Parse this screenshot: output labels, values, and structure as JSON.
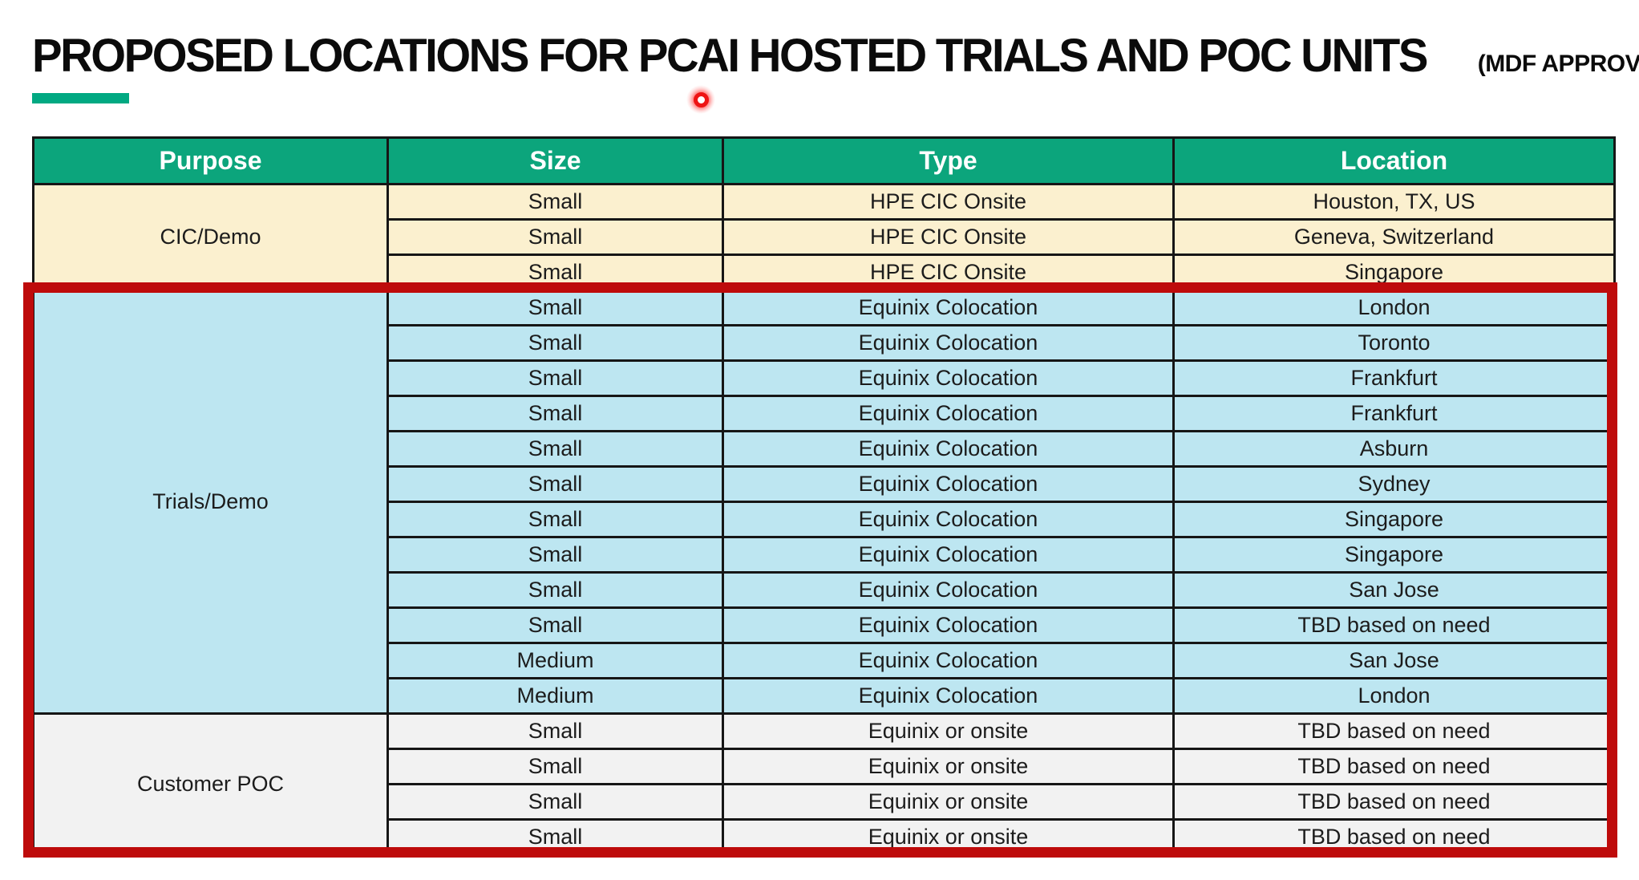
{
  "slide": {
    "title": "PROPOSED LOCATIONS FOR PCAI HOSTED TRIALS AND POC UNITS",
    "title_suffix": "(MDF APPROVED)",
    "accent_color": "#01A982",
    "highlight_border_color": "#BE0B0B",
    "laser_pointer_color": "#EE1414"
  },
  "table": {
    "columns": [
      "Purpose",
      "Size",
      "Type",
      "Location"
    ],
    "header_bg": "#0CA57C",
    "header_text_color": "#FFFFFF",
    "sections": [
      {
        "purpose": "CIC/Demo",
        "bg": "#FBF0CF",
        "highlighted": false,
        "rows": [
          {
            "size": "Small",
            "type": "HPE CIC Onsite",
            "location": "Houston, TX, US"
          },
          {
            "size": "Small",
            "type": "HPE CIC Onsite",
            "location": "Geneva, Switzerland"
          },
          {
            "size": "Small",
            "type": "HPE CIC Onsite",
            "location": "Singapore"
          }
        ]
      },
      {
        "purpose": "Trials/Demo",
        "bg": "#BDE6F1",
        "highlighted": true,
        "rows": [
          {
            "size": "Small",
            "type": "Equinix Colocation",
            "location": "London"
          },
          {
            "size": "Small",
            "type": "Equinix Colocation",
            "location": "Toronto"
          },
          {
            "size": "Small",
            "type": "Equinix Colocation",
            "location": "Frankfurt"
          },
          {
            "size": "Small",
            "type": "Equinix Colocation",
            "location": "Frankfurt"
          },
          {
            "size": "Small",
            "type": "Equinix Colocation",
            "location": "Asburn"
          },
          {
            "size": "Small",
            "type": "Equinix Colocation",
            "location": "Sydney"
          },
          {
            "size": "Small",
            "type": "Equinix Colocation",
            "location": "Singapore"
          },
          {
            "size": "Small",
            "type": "Equinix Colocation",
            "location": "Singapore"
          },
          {
            "size": "Small",
            "type": "Equinix Colocation",
            "location": "San Jose"
          },
          {
            "size": "Small",
            "type": "Equinix Colocation",
            "location": "TBD based on need"
          },
          {
            "size": "Medium",
            "type": "Equinix Colocation",
            "location": "San Jose"
          },
          {
            "size": "Medium",
            "type": "Equinix Colocation",
            "location": "London"
          }
        ]
      },
      {
        "purpose": "Customer POC",
        "bg": "#F2F2F2",
        "highlighted": true,
        "rows": [
          {
            "size": "Small",
            "type": "Equinix or onsite",
            "location": "TBD based on need"
          },
          {
            "size": "Small",
            "type": "Equinix or onsite",
            "location": "TBD based on need"
          },
          {
            "size": "Small",
            "type": "Equinix or onsite",
            "location": "TBD based on need"
          },
          {
            "size": "Small",
            "type": "Equinix or onsite",
            "location": "TBD based on need"
          }
        ]
      }
    ]
  }
}
